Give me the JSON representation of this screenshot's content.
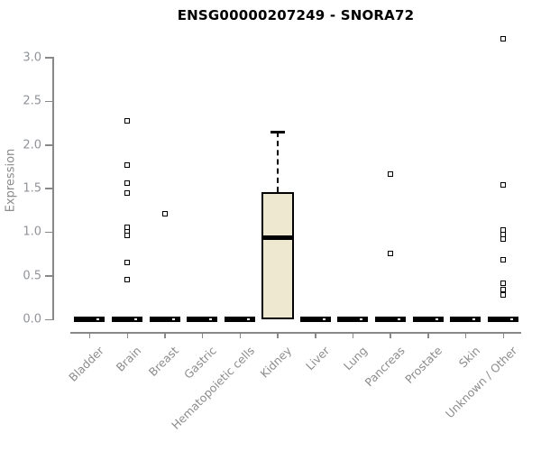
{
  "chart_data": {
    "type": "boxplot",
    "title": "ENSG00000207249 - SNORA72",
    "ylabel": "Expression",
    "xlabel": "",
    "ylim": [
      0.0,
      3.0
    ],
    "yticks": [
      "0.0",
      "0.5",
      "1.0",
      "1.5",
      "2.0",
      "2.5",
      "3.0"
    ],
    "grid": "off",
    "legend": "none",
    "categories": [
      "Bladder",
      "Brain",
      "Breast",
      "Gastric",
      "Hematopoietic cells",
      "Kidney",
      "Liver",
      "Lung",
      "Pancreas",
      "Prostate",
      "Skin",
      "Unknown / Other"
    ],
    "boxes": [
      {
        "category": "Bladder",
        "q1": 0,
        "median": 0,
        "q3": 0,
        "whisker_low": 0,
        "whisker_high": 0,
        "outliers": []
      },
      {
        "category": "Brain",
        "q1": 0,
        "median": 0,
        "q3": 0,
        "whisker_low": 0,
        "whisker_high": 0,
        "outliers": [
          2.28,
          1.77,
          1.56,
          1.45,
          1.05,
          1.0,
          0.96,
          0.65,
          0.45
        ]
      },
      {
        "category": "Breast",
        "q1": 0,
        "median": 0,
        "q3": 0,
        "whisker_low": 0,
        "whisker_high": 0,
        "outliers": [
          1.21
        ]
      },
      {
        "category": "Gastric",
        "q1": 0,
        "median": 0,
        "q3": 0,
        "whisker_low": 0,
        "whisker_high": 0,
        "outliers": []
      },
      {
        "category": "Hematopoietic cells",
        "q1": 0,
        "median": 0,
        "q3": 0,
        "whisker_low": 0,
        "whisker_high": 0,
        "outliers": []
      },
      {
        "category": "Kidney",
        "q1": 0,
        "median": 0.94,
        "q3": 1.46,
        "whisker_low": 0,
        "whisker_high": 2.15,
        "outliers": []
      },
      {
        "category": "Liver",
        "q1": 0,
        "median": 0,
        "q3": 0,
        "whisker_low": 0,
        "whisker_high": 0,
        "outliers": []
      },
      {
        "category": "Lung",
        "q1": 0,
        "median": 0,
        "q3": 0,
        "whisker_low": 0,
        "whisker_high": 0,
        "outliers": []
      },
      {
        "category": "Pancreas",
        "q1": 0,
        "median": 0,
        "q3": 0,
        "whisker_low": 0,
        "whisker_high": 0,
        "outliers": [
          1.66,
          0.76
        ]
      },
      {
        "category": "Prostate",
        "q1": 0,
        "median": 0,
        "q3": 0,
        "whisker_low": 0,
        "whisker_high": 0,
        "outliers": []
      },
      {
        "category": "Skin",
        "q1": 0,
        "median": 0,
        "q3": 0,
        "whisker_low": 0,
        "whisker_high": 0,
        "outliers": []
      },
      {
        "category": "Unknown / Other",
        "q1": 0,
        "median": 0,
        "q3": 0,
        "whisker_low": 0,
        "whisker_high": 0,
        "outliers": [
          3.22,
          1.54,
          1.02,
          0.97,
          0.92,
          0.68,
          0.41,
          0.34,
          0.28
        ]
      }
    ],
    "colors": {
      "background": "#ffffff",
      "box_fill": "#EDE8CF",
      "box_border": "#000000",
      "median": "#000000",
      "whisker": "#000000",
      "outlier_border": "#000000",
      "outlier_fill": "#ffffff",
      "axis": "#888888",
      "tick_label": "#90939a",
      "category_label": "#8c8c8c",
      "title": "#000000"
    }
  }
}
